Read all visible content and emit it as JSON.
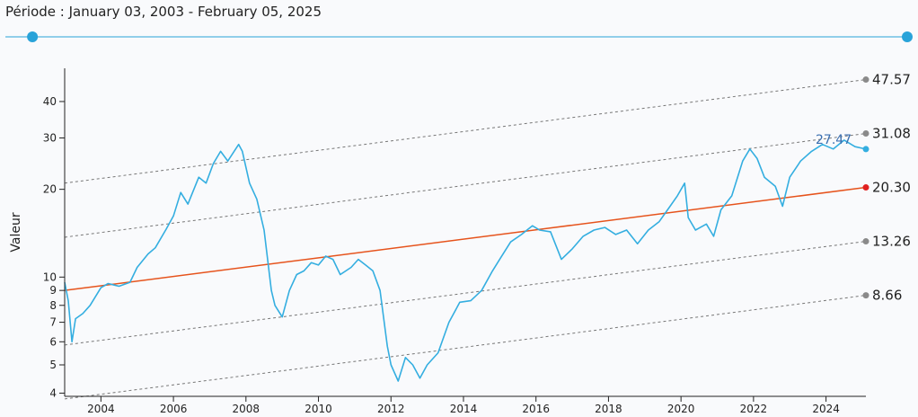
{
  "header": {
    "period_prefix": "Période : ",
    "period_start": "January 03, 2003",
    "period_sep": " - ",
    "period_end": "February 05, 2025"
  },
  "slider": {
    "start_fraction": 0.03,
    "end_fraction": 1.0,
    "color": "#29a3d9"
  },
  "chart_data": {
    "type": "line",
    "ylabel": "Valeur",
    "yscale": "log",
    "ylim": [
      3.9,
      52
    ],
    "xlim": [
      2003.0,
      2025.1
    ],
    "x_ticks": [
      "2004",
      "2006",
      "2008",
      "2010",
      "2012",
      "2014",
      "2016",
      "2018",
      "2020",
      "2022",
      "2024"
    ],
    "y_ticks": [
      "4",
      "5",
      "6",
      "7",
      "8",
      "9",
      "10",
      "20",
      "30",
      "40"
    ],
    "series": [
      {
        "color": "#34aee0",
        "points": [
          [
            2003.0,
            9.6
          ],
          [
            2003.1,
            8.3
          ],
          [
            2003.2,
            6.0
          ],
          [
            2003.3,
            7.2
          ],
          [
            2003.5,
            7.5
          ],
          [
            2003.7,
            8.0
          ],
          [
            2004.0,
            9.2
          ],
          [
            2004.2,
            9.5
          ],
          [
            2004.5,
            9.3
          ],
          [
            2004.8,
            9.6
          ],
          [
            2005.0,
            10.8
          ],
          [
            2005.3,
            12.0
          ],
          [
            2005.5,
            12.6
          ],
          [
            2005.8,
            14.6
          ],
          [
            2006.0,
            16.2
          ],
          [
            2006.2,
            19.5
          ],
          [
            2006.4,
            17.8
          ],
          [
            2006.7,
            22.0
          ],
          [
            2006.9,
            21.0
          ],
          [
            2007.1,
            24.5
          ],
          [
            2007.3,
            27.0
          ],
          [
            2007.5,
            25.0
          ],
          [
            2007.8,
            28.5
          ],
          [
            2007.9,
            27.0
          ],
          [
            2008.1,
            21.0
          ],
          [
            2008.3,
            18.5
          ],
          [
            2008.5,
            14.5
          ],
          [
            2008.7,
            9.0
          ],
          [
            2008.8,
            8.0
          ],
          [
            2009.0,
            7.3
          ],
          [
            2009.2,
            9.0
          ],
          [
            2009.4,
            10.2
          ],
          [
            2009.6,
            10.5
          ],
          [
            2009.8,
            11.2
          ],
          [
            2010.0,
            11.0
          ],
          [
            2010.2,
            11.8
          ],
          [
            2010.4,
            11.5
          ],
          [
            2010.6,
            10.2
          ],
          [
            2010.9,
            10.8
          ],
          [
            2011.1,
            11.5
          ],
          [
            2011.3,
            11.0
          ],
          [
            2011.5,
            10.5
          ],
          [
            2011.7,
            9.0
          ],
          [
            2011.9,
            5.8
          ],
          [
            2012.0,
            5.0
          ],
          [
            2012.2,
            4.4
          ],
          [
            2012.4,
            5.3
          ],
          [
            2012.6,
            5.0
          ],
          [
            2012.8,
            4.5
          ],
          [
            2013.0,
            5.0
          ],
          [
            2013.3,
            5.5
          ],
          [
            2013.6,
            7.0
          ],
          [
            2013.9,
            8.2
          ],
          [
            2014.2,
            8.3
          ],
          [
            2014.5,
            9.0
          ],
          [
            2014.8,
            10.5
          ],
          [
            2015.0,
            11.5
          ],
          [
            2015.3,
            13.2
          ],
          [
            2015.6,
            14.0
          ],
          [
            2015.9,
            15.0
          ],
          [
            2016.1,
            14.5
          ],
          [
            2016.4,
            14.3
          ],
          [
            2016.7,
            11.5
          ],
          [
            2017.0,
            12.5
          ],
          [
            2017.3,
            13.8
          ],
          [
            2017.6,
            14.5
          ],
          [
            2017.9,
            14.8
          ],
          [
            2018.2,
            14.0
          ],
          [
            2018.5,
            14.5
          ],
          [
            2018.8,
            13.0
          ],
          [
            2019.1,
            14.5
          ],
          [
            2019.4,
            15.5
          ],
          [
            2019.7,
            17.5
          ],
          [
            2019.9,
            19.0
          ],
          [
            2020.1,
            21.0
          ],
          [
            2020.2,
            16.0
          ],
          [
            2020.4,
            14.5
          ],
          [
            2020.7,
            15.2
          ],
          [
            2020.9,
            13.8
          ],
          [
            2021.1,
            17.0
          ],
          [
            2021.4,
            19.0
          ],
          [
            2021.7,
            25.0
          ],
          [
            2021.9,
            27.5
          ],
          [
            2022.1,
            25.5
          ],
          [
            2022.3,
            22.0
          ],
          [
            2022.6,
            20.5
          ],
          [
            2022.8,
            17.5
          ],
          [
            2023.0,
            22.0
          ],
          [
            2023.3,
            25.0
          ],
          [
            2023.6,
            27.0
          ],
          [
            2023.9,
            28.5
          ],
          [
            2024.2,
            27.5
          ],
          [
            2024.5,
            29.5
          ],
          [
            2024.8,
            28.0
          ],
          [
            2025.1,
            27.47
          ]
        ]
      }
    ],
    "regression_bands": [
      {
        "label": "47.57",
        "end_value": 47.57,
        "start_value": 21.0,
        "style": "dashed",
        "color": "#777777"
      },
      {
        "label": "31.08",
        "end_value": 31.08,
        "start_value": 13.7,
        "style": "dashed",
        "color": "#777777"
      },
      {
        "label": "20.30",
        "end_value": 20.3,
        "start_value": 9.0,
        "style": "solid",
        "color": "#e6531c"
      },
      {
        "label": "13.26",
        "end_value": 13.26,
        "start_value": 5.85,
        "style": "dashed",
        "color": "#777777"
      },
      {
        "label": "8.66",
        "end_value": 8.66,
        "start_value": 3.82,
        "style": "dashed",
        "color": "#777777"
      }
    ],
    "current_value_label": "27.47",
    "current_value": 27.47,
    "marker_colors": {
      "band": "#8a8a8a",
      "center": "#e02020",
      "current": "#34aee0"
    }
  }
}
